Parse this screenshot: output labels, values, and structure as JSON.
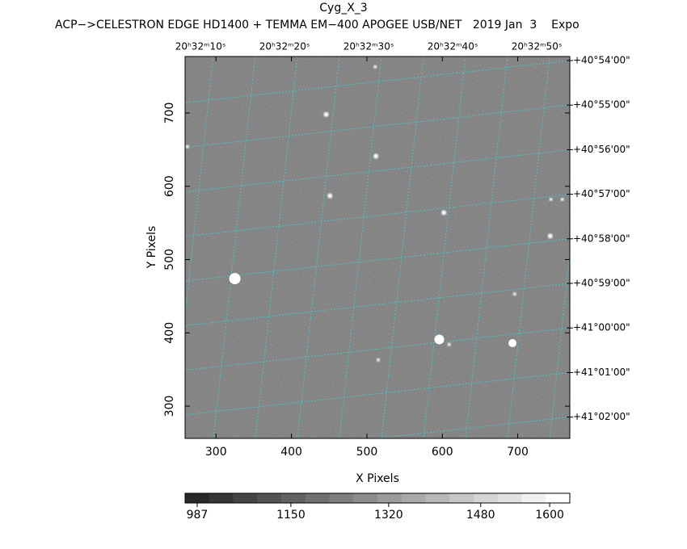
{
  "chart_data": {
    "type": "image",
    "title": "Cyg_X_3",
    "subtitle": "ACP−>CELESTRON EDGE HD1400 + TEMMA EM−400 APOGEE USB/NET   2019 Jan  3    Expo",
    "x_label": "X Pixels",
    "y_label": "Y Pixels",
    "xlim": [
      259,
      769
    ],
    "xticks": [
      300,
      400,
      500,
      600,
      700
    ],
    "ylim": [
      256,
      777
    ],
    "yticks": [
      300,
      400,
      500,
      600,
      700
    ],
    "ra_labels": [
      "20ʰ32ᵐ10ˢ",
      "20ʰ32ᵐ20ˢ",
      "20ʰ32ᵐ30ˢ",
      "20ʰ32ᵐ40ˢ",
      "20ʰ32ᵐ50ˢ"
    ],
    "dec_labels": [
      "+40°54'00\"",
      "+40°55'00\"",
      "+40°56'00\"",
      "+40°57'00\"",
      "+40°58'00\"",
      "+40°59'00\"",
      "+41°00'00\"",
      "+41°01'00\"",
      "+41°02'00\""
    ],
    "grid_color": "#3fd0d0",
    "stars": {
      "x": [
        325,
        596,
        693,
        512,
        446,
        602,
        743,
        696,
        451,
        262,
        609,
        511,
        759,
        744,
        515
      ],
      "y": [
        474,
        391,
        386,
        641,
        698,
        564,
        532,
        453,
        587,
        654,
        384,
        763,
        582,
        582,
        363
      ],
      "size": [
        7,
        6,
        5,
        3,
        3,
        3,
        3,
        2,
        3,
        2,
        2,
        2,
        2,
        2,
        2
      ]
    },
    "colorbar": {
      "clim": [
        966,
        1635
      ],
      "ticks": [
        987,
        1150,
        1320,
        1480,
        1600
      ]
    }
  }
}
